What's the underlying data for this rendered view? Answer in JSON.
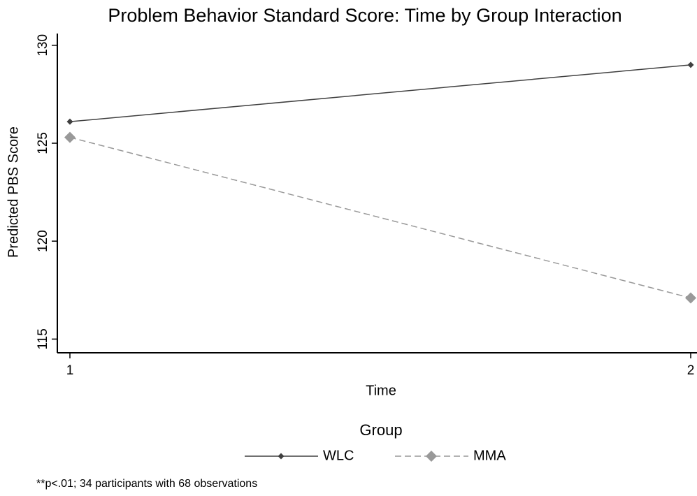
{
  "chart_data": {
    "type": "line",
    "title": "Problem Behavior Standard Score: Time by Group Interaction",
    "x_label": "Time",
    "y_label": "Predicted PBS Score",
    "x": [
      1,
      2
    ],
    "series": [
      {
        "name": "WLC",
        "color": "#404040",
        "dash": "solid",
        "values": [
          126.1,
          129.0
        ]
      },
      {
        "name": "MMA",
        "color": "#999999",
        "dash": "dashed",
        "values": [
          125.3,
          117.1
        ]
      }
    ],
    "xlim": [
      1,
      2
    ],
    "xticks": [
      1,
      2
    ],
    "ylim": [
      114.3,
      130.6
    ],
    "yticks": [
      115,
      120,
      125,
      130
    ],
    "legend_title": "Group",
    "legend_position": "bottom",
    "note": "**p<.01; 34 participants with 68 observations"
  }
}
